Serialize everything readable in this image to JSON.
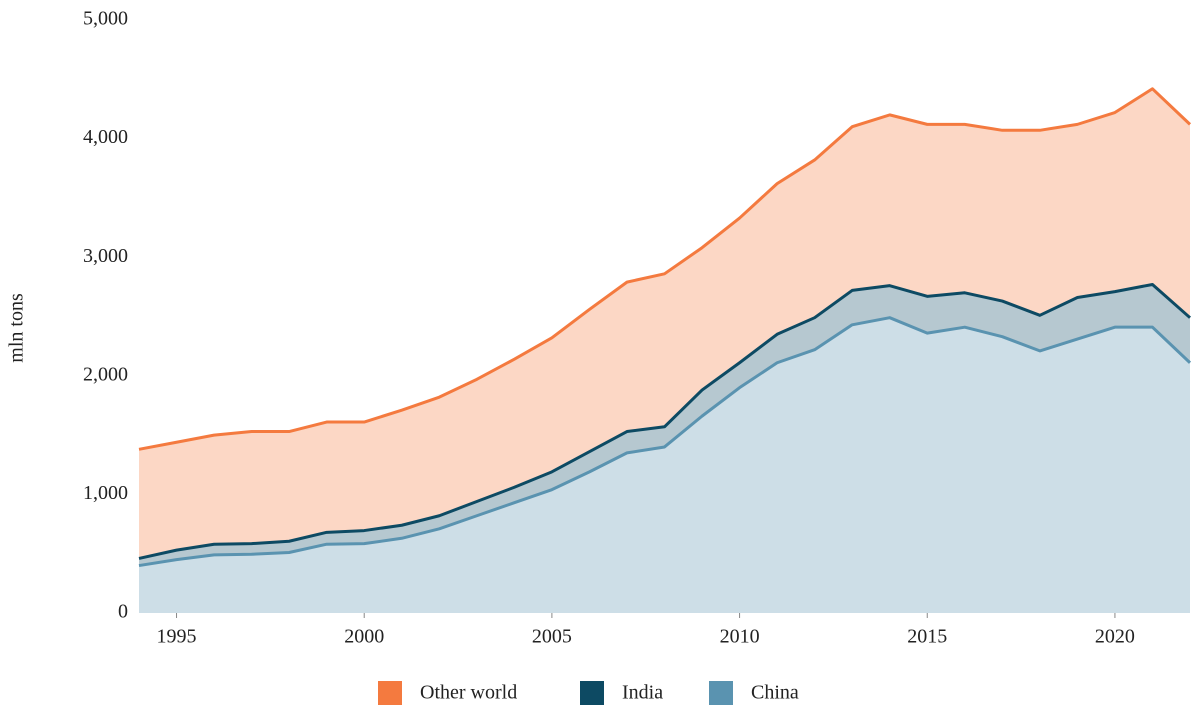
{
  "chart_data": {
    "type": "stacked_area",
    "ylabel": "mln tons",
    "x": [
      1994,
      1995,
      1996,
      1997,
      1998,
      1999,
      2000,
      2001,
      2002,
      2003,
      2004,
      2005,
      2006,
      2007,
      2008,
      2009,
      2010,
      2011,
      2012,
      2013,
      2014,
      2015,
      2016,
      2017,
      2018,
      2019,
      2020,
      2021,
      2022
    ],
    "xlim": [
      1994,
      2022
    ],
    "xticks": [
      1995,
      2000,
      2005,
      2010,
      2015,
      2020
    ],
    "ylim": [
      0,
      5000
    ],
    "yticks": [
      0,
      {
        "value": 1000,
        "label": "1,000"
      },
      {
        "value": 2000,
        "label": "2,000"
      },
      {
        "value": 3000,
        "label": "3,000"
      },
      {
        "value": 4000,
        "label": "4,000"
      },
      {
        "value": 5000,
        "label": "5,000"
      }
    ],
    "legend": "bottom",
    "series": [
      {
        "name": "Other world",
        "color": "#f47a3f",
        "values": [
          920,
          910,
          920,
          945,
          925,
          930,
          915,
          970,
          1000,
          1030,
          1080,
          1130,
          1200,
          1260,
          1290,
          1200,
          1220,
          1270,
          1330,
          1380,
          1440,
          1450,
          1420,
          1440,
          1560,
          1460,
          1510,
          1650,
          1630
        ]
      },
      {
        "name": "India",
        "color": "#0d4a63",
        "values": [
          60,
          80,
          90,
          90,
          95,
          100,
          110,
          110,
          110,
          120,
          130,
          150,
          170,
          180,
          170,
          220,
          210,
          240,
          270,
          290,
          270,
          310,
          290,
          300,
          300,
          350,
          300,
          360,
          380
        ]
      },
      {
        "name": "China",
        "color": "#5a93b0",
        "values": [
          400,
          450,
          490,
          495,
          510,
          580,
          585,
          630,
          710,
          820,
          930,
          1040,
          1190,
          1350,
          1400,
          1660,
          1900,
          2110,
          2220,
          2430,
          2490,
          2360,
          2410,
          2330,
          2210,
          2310,
          2410,
          2410,
          2110
        ]
      }
    ]
  }
}
